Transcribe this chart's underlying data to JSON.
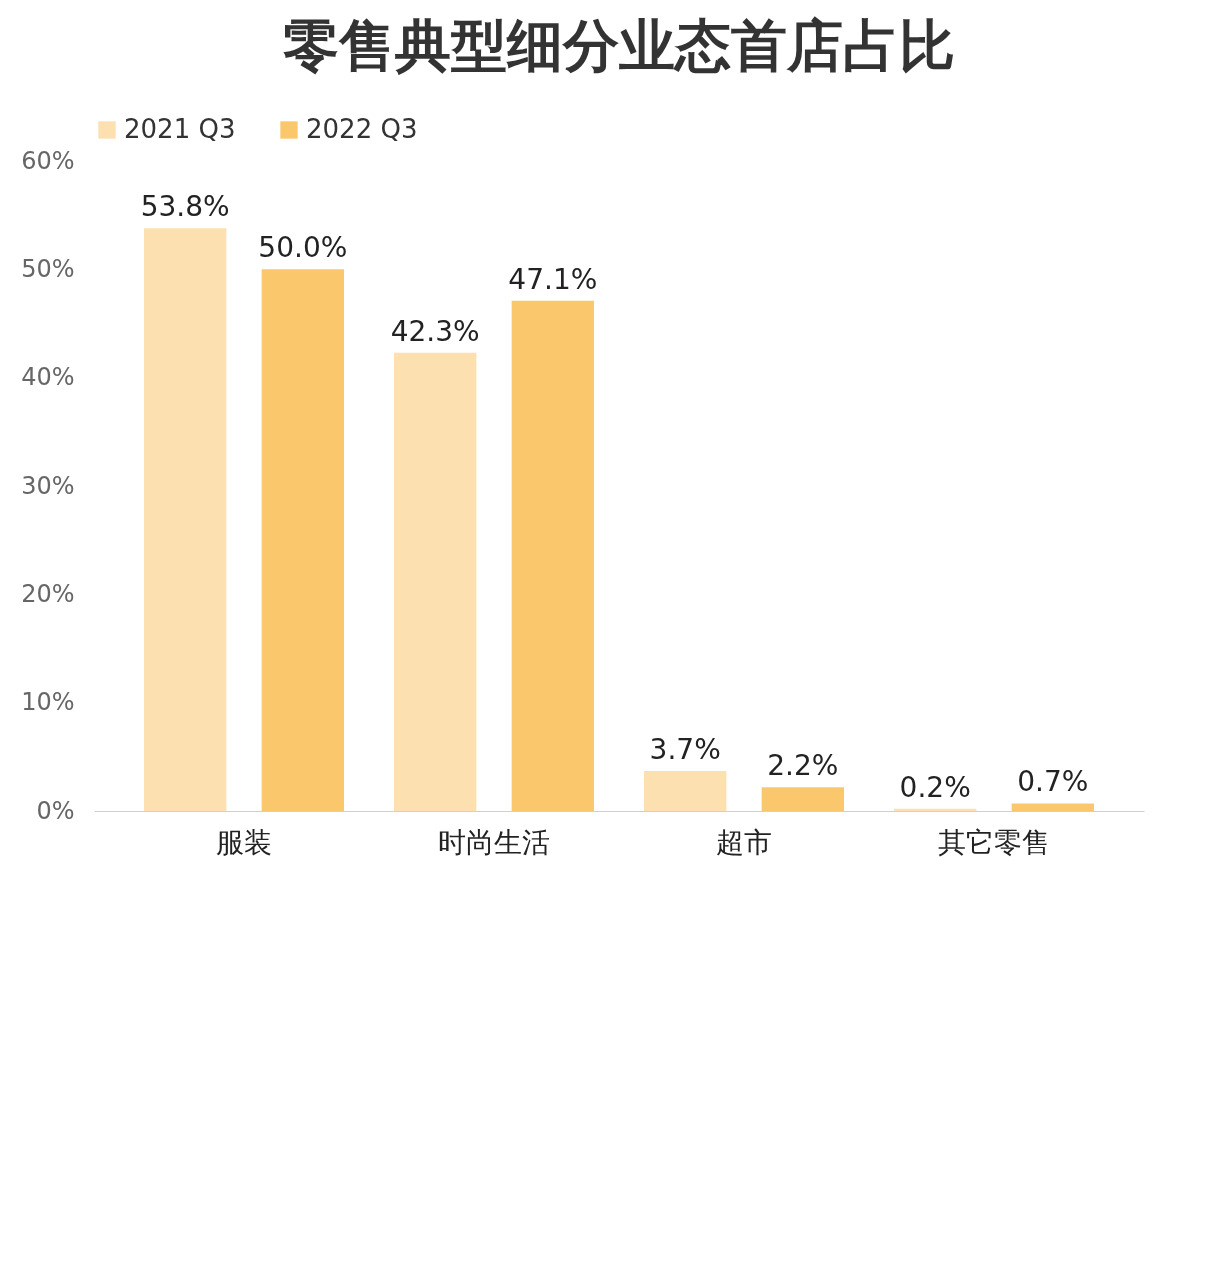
{
  "chart_data": {
    "type": "bar",
    "title": "零售典型细分业态首店占比",
    "categories": [
      "服装",
      "时尚生活",
      "超市",
      "其它零售"
    ],
    "series": [
      {
        "name": "2021 Q3",
        "color": "#fde0b0",
        "values": [
          53.8,
          42.3,
          3.7,
          0.2
        ],
        "value_labels": [
          "53.8%",
          "42.3%",
          "3.7%",
          "0.2%"
        ]
      },
      {
        "name": "2022 Q3",
        "color": "#fbc76d",
        "values": [
          50.0,
          47.1,
          2.2,
          0.7
        ],
        "value_labels": [
          "50.0%",
          "47.1%",
          "2.2%",
          "0.7%"
        ]
      }
    ],
    "ylim": [
      0,
      60
    ],
    "yticks": [
      {
        "value": 0,
        "label": "0%"
      },
      {
        "value": 10,
        "label": "10%"
      },
      {
        "value": 20,
        "label": "20%"
      },
      {
        "value": 30,
        "label": "30%"
      },
      {
        "value": 40,
        "label": "40%"
      },
      {
        "value": 50,
        "label": "50%"
      },
      {
        "value": 60,
        "label": "60%"
      }
    ],
    "grid": false,
    "legend": "top"
  }
}
